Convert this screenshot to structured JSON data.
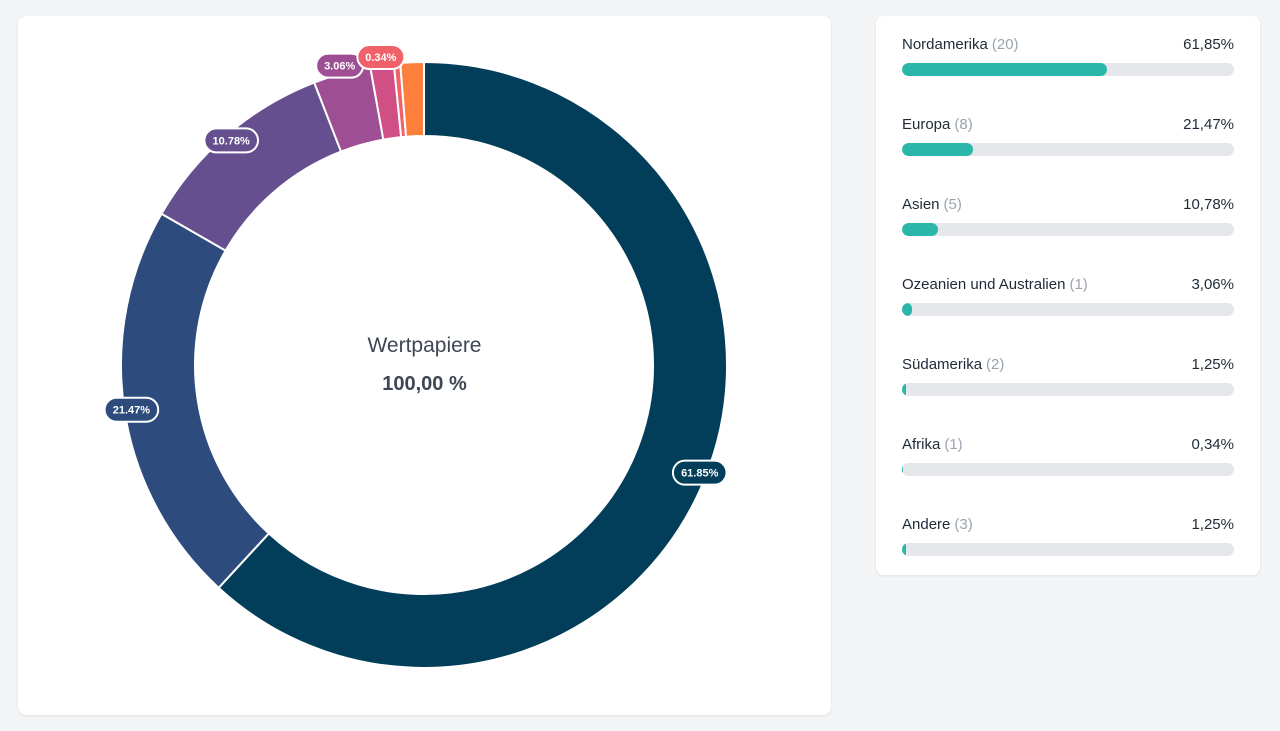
{
  "chart_data": {
    "type": "pie",
    "center_title": "Wertpapiere",
    "center_value": "100,00 %",
    "slices": [
      {
        "name": "Nordamerika",
        "count": 20,
        "value": 61.85,
        "percent_label": "61,85%",
        "chart_label": "61.85%",
        "color": "#023e5a"
      },
      {
        "name": "Europa",
        "count": 8,
        "value": 21.47,
        "percent_label": "21,47%",
        "chart_label": "21.47%",
        "color": "#2d4b7c"
      },
      {
        "name": "Asien",
        "count": 5,
        "value": 10.78,
        "percent_label": "10,78%",
        "chart_label": "10.78%",
        "color": "#664f8f"
      },
      {
        "name": "Ozeanien und Australien",
        "count": 1,
        "value": 3.06,
        "percent_label": "3,06%",
        "chart_label": "3.06%",
        "color": "#9e4f94"
      },
      {
        "name": "Südamerika",
        "count": 2,
        "value": 1.25,
        "percent_label": "1,25%",
        "chart_label": "",
        "color": "#d04f84"
      },
      {
        "name": "Afrika",
        "count": 1,
        "value": 0.34,
        "percent_label": "0,34%",
        "chart_label": "0.34%",
        "color": "#f0616a"
      },
      {
        "name": "Andere",
        "count": 3,
        "value": 1.25,
        "percent_label": "1,25%",
        "chart_label": "",
        "color": "#fd7f3c"
      }
    ]
  },
  "legend": {
    "rows": [
      {
        "name": "Nordamerika",
        "count": "(20)",
        "percent": "61,85%",
        "fill": 0.6185
      },
      {
        "name": "Europa",
        "count": "(8)",
        "percent": "21,47%",
        "fill": 0.2147
      },
      {
        "name": "Asien",
        "count": "(5)",
        "percent": "10,78%",
        "fill": 0.1078
      },
      {
        "name": "Ozeanien und Australien",
        "count": "(1)",
        "percent": "3,06%",
        "fill": 0.0306
      },
      {
        "name": "Südamerika",
        "count": "(2)",
        "percent": "1,25%",
        "fill": 0.0125
      },
      {
        "name": "Afrika",
        "count": "(1)",
        "percent": "0,34%",
        "fill": 0.0034
      },
      {
        "name": "Andere",
        "count": "(3)",
        "percent": "1,25%",
        "fill": 0.0125
      }
    ],
    "bar_color": "#2ab7a9",
    "track_color": "#e5e7eb"
  }
}
